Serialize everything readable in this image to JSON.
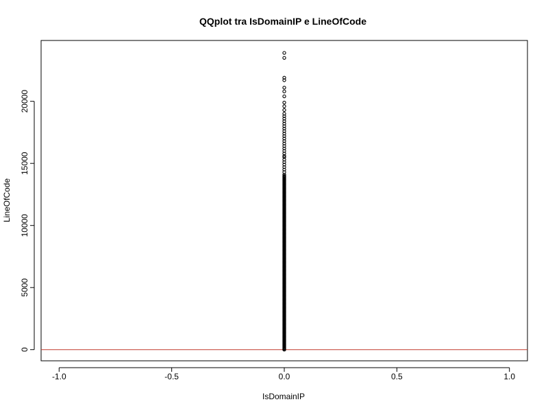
{
  "chart_data": {
    "type": "scatter",
    "title": "QQplot tra IsDomainIP e LineOfCode",
    "xlabel": "IsDomainIP",
    "ylabel": "LineOfCode",
    "xlim": [
      -1.08,
      1.08
    ],
    "ylim": [
      -900,
      24900
    ],
    "x_ticks": [
      -1.0,
      -0.5,
      0.0,
      0.5,
      1.0
    ],
    "x_tick_labels": [
      "-1.0",
      "-0.5",
      "0.0",
      "0.5",
      "1.0"
    ],
    "y_ticks": [
      0,
      5000,
      10000,
      15000,
      20000
    ],
    "y_tick_labels": [
      "0",
      "5000",
      "10000",
      "15000",
      "20000"
    ],
    "grid": false,
    "legend": "none",
    "reference_line": {
      "type": "horizontal",
      "y": 0,
      "color": "#c0392b"
    },
    "point_style": {
      "shape": "open-circle",
      "color": "#000000"
    },
    "series": [
      {
        "x_value": 0,
        "dense_band": [
          0,
          14000
        ],
        "sparse_values": [
          14100,
          14300,
          14500,
          14700,
          14900,
          15100,
          15300,
          15500,
          15600,
          15800,
          16000,
          16200,
          16400,
          16600,
          16800,
          17000,
          17200,
          17400,
          17600,
          17800,
          18000,
          18200,
          18400,
          18600,
          18800,
          19000,
          19300,
          19600,
          19900,
          20400,
          20800,
          21100,
          21700,
          21900,
          23500,
          23900
        ]
      }
    ]
  }
}
